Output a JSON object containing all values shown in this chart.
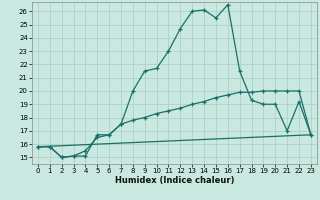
{
  "xlabel": "Humidex (Indice chaleur)",
  "bg_color": "#c8e8e0",
  "grid_color": "#b0d0cc",
  "line_color": "#1a7068",
  "xlim": [
    -0.5,
    23.5
  ],
  "ylim": [
    14.5,
    26.7
  ],
  "xticks": [
    0,
    1,
    2,
    3,
    4,
    5,
    6,
    7,
    8,
    9,
    10,
    11,
    12,
    13,
    14,
    15,
    16,
    17,
    18,
    19,
    20,
    21,
    22,
    23
  ],
  "yticks": [
    15,
    16,
    17,
    18,
    19,
    20,
    21,
    22,
    23,
    24,
    25,
    26
  ],
  "curve1_x": [
    0,
    1,
    2,
    3,
    4,
    5,
    6,
    7,
    8,
    9,
    10,
    11,
    12,
    13,
    14,
    15,
    16,
    17,
    18,
    19,
    20,
    21,
    22,
    23
  ],
  "curve1_y": [
    15.8,
    15.8,
    15.0,
    15.1,
    15.1,
    16.7,
    16.7,
    17.5,
    20.0,
    21.5,
    21.7,
    23.0,
    24.7,
    26.0,
    26.1,
    25.5,
    26.5,
    21.5,
    19.3,
    19.0,
    19.0,
    17.0,
    19.2,
    16.7
  ],
  "curve2_x": [
    0,
    1,
    2,
    3,
    4,
    5,
    6,
    7,
    8,
    9,
    10,
    11,
    12,
    13,
    14,
    15,
    16,
    17,
    18,
    19,
    20,
    21,
    22,
    23
  ],
  "curve2_y": [
    15.8,
    15.8,
    15.0,
    15.1,
    15.5,
    16.5,
    16.7,
    17.5,
    17.8,
    18.0,
    18.3,
    18.5,
    18.7,
    19.0,
    19.2,
    19.5,
    19.7,
    19.9,
    19.9,
    20.0,
    20.0,
    20.0,
    20.0,
    16.7
  ],
  "curve3_x": [
    0,
    23
  ],
  "curve3_y": [
    15.8,
    16.7
  ]
}
